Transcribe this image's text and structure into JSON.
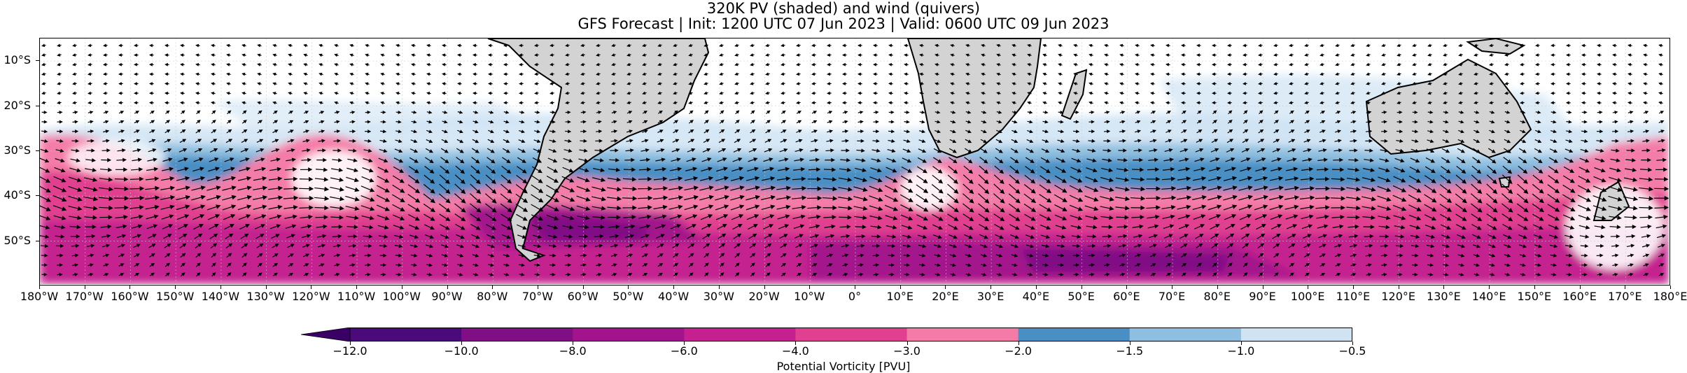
{
  "title_line1": "320K PV (shaded) and wind (quivers)",
  "title_line2": "GFS Forecast | Init: 1200 UTC 07 Jun 2023 | Valid: 0600 UTC 09 Jun 2023",
  "map": {
    "lon_range": [
      -180,
      180
    ],
    "lat_range": [
      -60,
      -5
    ],
    "land_color": "#d3d3d3",
    "coastline_color": "#000000",
    "grid": true
  },
  "y_labels": [
    {
      "lat": -10,
      "text": "10°S"
    },
    {
      "lat": -20,
      "text": "20°S"
    },
    {
      "lat": -30,
      "text": "30°S"
    },
    {
      "lat": -40,
      "text": "40°S"
    },
    {
      "lat": -50,
      "text": "50°S"
    }
  ],
  "x_labels": [
    {
      "lon": -180,
      "text": "180°W"
    },
    {
      "lon": -170,
      "text": "170°W"
    },
    {
      "lon": -160,
      "text": "160°W"
    },
    {
      "lon": -150,
      "text": "150°W"
    },
    {
      "lon": -140,
      "text": "140°W"
    },
    {
      "lon": -130,
      "text": "130°W"
    },
    {
      "lon": -120,
      "text": "120°W"
    },
    {
      "lon": -110,
      "text": "110°W"
    },
    {
      "lon": -100,
      "text": "100°W"
    },
    {
      "lon": -90,
      "text": "90°W"
    },
    {
      "lon": -80,
      "text": "80°W"
    },
    {
      "lon": -70,
      "text": "70°W"
    },
    {
      "lon": -60,
      "text": "60°W"
    },
    {
      "lon": -50,
      "text": "50°W"
    },
    {
      "lon": -40,
      "text": "40°W"
    },
    {
      "lon": -30,
      "text": "30°W"
    },
    {
      "lon": -20,
      "text": "20°W"
    },
    {
      "lon": -10,
      "text": "10°W"
    },
    {
      "lon": 0,
      "text": "0°"
    },
    {
      "lon": 10,
      "text": "10°E"
    },
    {
      "lon": 20,
      "text": "20°E"
    },
    {
      "lon": 30,
      "text": "30°E"
    },
    {
      "lon": 40,
      "text": "40°E"
    },
    {
      "lon": 50,
      "text": "50°E"
    },
    {
      "lon": 60,
      "text": "60°E"
    },
    {
      "lon": 70,
      "text": "70°E"
    },
    {
      "lon": 80,
      "text": "80°E"
    },
    {
      "lon": 90,
      "text": "90°E"
    },
    {
      "lon": 100,
      "text": "100°E"
    },
    {
      "lon": 110,
      "text": "110°E"
    },
    {
      "lon": 120,
      "text": "120°E"
    },
    {
      "lon": 130,
      "text": "130°E"
    },
    {
      "lon": 140,
      "text": "140°E"
    },
    {
      "lon": 150,
      "text": "150°E"
    },
    {
      "lon": 160,
      "text": "160°E"
    },
    {
      "lon": 170,
      "text": "170°E"
    },
    {
      "lon": 180,
      "text": "180°E"
    }
  ],
  "colorbar": {
    "label": "Potential Vorticity [PVU]",
    "extend": "min",
    "boundaries": [
      {
        "value": -12.0,
        "text": "−12.0"
      },
      {
        "value": -10.0,
        "text": "−10.0"
      },
      {
        "value": -8.0,
        "text": "−8.0"
      },
      {
        "value": -6.0,
        "text": "−6.0"
      },
      {
        "value": -4.0,
        "text": "−4.0"
      },
      {
        "value": -3.0,
        "text": "−3.0"
      },
      {
        "value": -2.0,
        "text": "−2.0"
      },
      {
        "value": -1.5,
        "text": "−1.5"
      },
      {
        "value": -1.0,
        "text": "−1.0"
      },
      {
        "value": -0.5,
        "text": "−0.5"
      }
    ],
    "extend_color": "#3b0066",
    "colors": [
      "#4b0a7a",
      "#800f85",
      "#a3138c",
      "#c4208f",
      "#e0408f",
      "#f47ba8",
      "#4a8fc4",
      "#8fbfe0",
      "#cfe3f3"
    ]
  }
}
